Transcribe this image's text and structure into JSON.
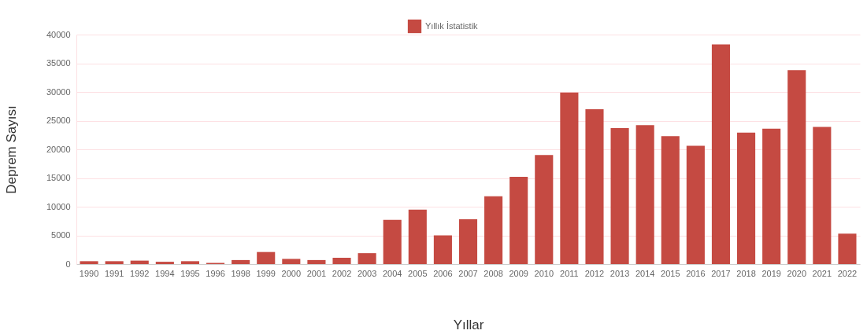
{
  "chart_data": {
    "type": "bar",
    "xlabel": "Yıllar",
    "ylabel": "Deprem Sayısı",
    "categories": [
      "1990",
      "1991",
      "1992",
      "1994",
      "1995",
      "1996",
      "1998",
      "1999",
      "2000",
      "2001",
      "2002",
      "2003",
      "2004",
      "2005",
      "2006",
      "2007",
      "2008",
      "2009",
      "2010",
      "2011",
      "2012",
      "2013",
      "2014",
      "2015",
      "2016",
      "2017",
      "2018",
      "2019",
      "2020",
      "2021",
      "2022"
    ],
    "series": [
      {
        "name": "Yıllık İstatistik",
        "color": "#c54a42",
        "values": [
          500,
          500,
          600,
          400,
          500,
          200,
          700,
          2100,
          900,
          700,
          1100,
          1900,
          7700,
          9500,
          5000,
          7800,
          11800,
          15200,
          19000,
          29900,
          27000,
          23700,
          24200,
          22300,
          20600,
          38300,
          22900,
          23600,
          33800,
          23900,
          5300
        ]
      }
    ],
    "ylim": [
      0,
      40000
    ],
    "yticks": [
      0,
      5000,
      10000,
      15000,
      20000,
      25000,
      30000,
      35000,
      40000
    ],
    "grid": "y",
    "legend": "top"
  }
}
